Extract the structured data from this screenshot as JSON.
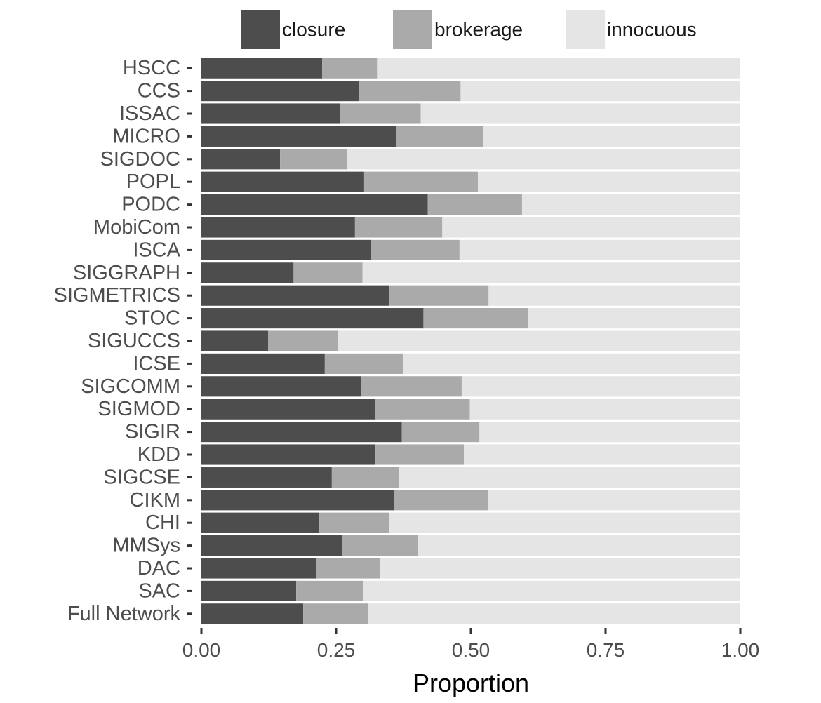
{
  "chart_data": {
    "type": "bar",
    "orientation": "horizontal",
    "stacked": true,
    "title": "",
    "xlabel": "Proportion",
    "ylabel": "",
    "xlim": [
      0,
      1
    ],
    "x_ticks": [
      0,
      0.25,
      0.5,
      0.75,
      1
    ],
    "x_tick_labels": [
      "0.00",
      "0.25",
      "0.50",
      "0.75",
      "1.00"
    ],
    "legend_position": "top",
    "categories": [
      "HSCC",
      "CCS",
      "ISSAC",
      "MICRO",
      "SIGDOC",
      "POPL",
      "PODC",
      "MobiCom",
      "ISCA",
      "SIGGRAPH",
      "SIGMETRICS",
      "STOC",
      "SIGUCCS",
      "ICSE",
      "SIGCOMM",
      "SIGMOD",
      "SIGIR",
      "KDD",
      "SIGCSE",
      "CIKM",
      "CHI",
      "MMSys",
      "DAC",
      "SAC",
      "Full Network"
    ],
    "series": [
      {
        "name": "closure",
        "color": "#4d4d4d",
        "values": [
          0.224,
          0.293,
          0.257,
          0.361,
          0.146,
          0.302,
          0.42,
          0.285,
          0.314,
          0.171,
          0.349,
          0.412,
          0.124,
          0.229,
          0.296,
          0.322,
          0.372,
          0.323,
          0.242,
          0.357,
          0.219,
          0.262,
          0.213,
          0.176,
          0.189
        ]
      },
      {
        "name": "brokerage",
        "color": "#aaaaaa",
        "values": [
          0.102,
          0.188,
          0.15,
          0.162,
          0.125,
          0.211,
          0.175,
          0.162,
          0.165,
          0.128,
          0.184,
          0.194,
          0.13,
          0.146,
          0.187,
          0.176,
          0.144,
          0.164,
          0.125,
          0.175,
          0.129,
          0.14,
          0.119,
          0.125,
          0.12
        ]
      },
      {
        "name": "innocuous",
        "color": "#e5e5e5",
        "values": [
          0.674,
          0.519,
          0.593,
          0.477,
          0.729,
          0.487,
          0.405,
          0.553,
          0.521,
          0.701,
          0.467,
          0.394,
          0.746,
          0.625,
          0.517,
          0.502,
          0.484,
          0.513,
          0.633,
          0.468,
          0.652,
          0.598,
          0.668,
          0.699,
          0.691
        ]
      }
    ]
  }
}
